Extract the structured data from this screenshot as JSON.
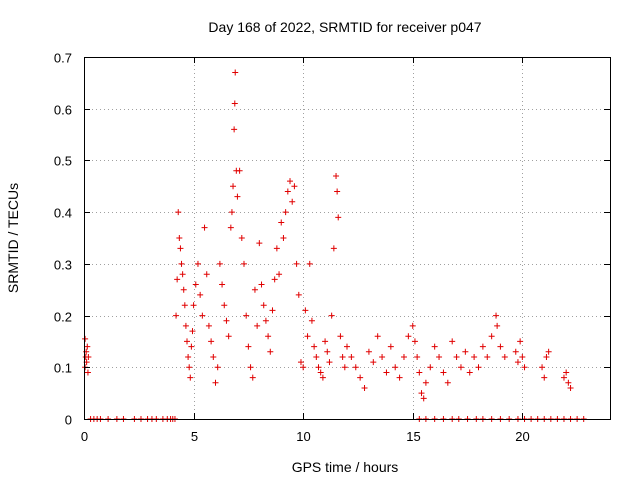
{
  "chart_data": {
    "type": "scatter",
    "title": "Day 168 of 2022, SRMTID for receiver p047",
    "xlabel": "GPS time / hours",
    "ylabel": "SRMTID / TECUs",
    "xlim": [
      0,
      24
    ],
    "ylim": [
      0,
      0.7
    ],
    "x_ticks": [
      0,
      5,
      10,
      15,
      20
    ],
    "y_ticks": [
      0,
      0.1,
      0.2,
      0.3,
      0.4,
      0.5,
      0.6,
      0.7
    ],
    "x_tick_labels": [
      "0",
      "5",
      "10",
      "15",
      "20"
    ],
    "y_tick_labels": [
      "0",
      "0.1",
      "0.2",
      "0.3",
      "0.4",
      "0.5",
      "0.6",
      "0.7"
    ],
    "grid": true,
    "marker": "plus",
    "marker_color": "#e00000",
    "series": [
      {
        "name": "SRMTID",
        "points": [
          [
            0.05,
            0.1
          ],
          [
            0.08,
            0.12
          ],
          [
            0.1,
            0.13
          ],
          [
            0.12,
            0.11
          ],
          [
            0.15,
            0.14
          ],
          [
            0.18,
            0.09
          ],
          [
            0.2,
            0.12
          ],
          [
            0.05,
            0.155
          ],
          [
            4.2,
            0.2
          ],
          [
            4.25,
            0.27
          ],
          [
            4.3,
            0.4
          ],
          [
            4.35,
            0.35
          ],
          [
            4.4,
            0.33
          ],
          [
            4.45,
            0.3
          ],
          [
            4.5,
            0.28
          ],
          [
            4.55,
            0.25
          ],
          [
            4.6,
            0.22
          ],
          [
            4.65,
            0.18
          ],
          [
            4.7,
            0.15
          ],
          [
            4.75,
            0.12
          ],
          [
            4.8,
            0.1
          ],
          [
            4.85,
            0.08
          ],
          [
            4.9,
            0.14
          ],
          [
            4.95,
            0.17
          ],
          [
            5.0,
            0.22
          ],
          [
            5.1,
            0.26
          ],
          [
            5.2,
            0.3
          ],
          [
            5.3,
            0.24
          ],
          [
            5.4,
            0.2
          ],
          [
            5.5,
            0.37
          ],
          [
            5.6,
            0.28
          ],
          [
            5.7,
            0.18
          ],
          [
            5.8,
            0.15
          ],
          [
            5.9,
            0.12
          ],
          [
            6.0,
            0.07
          ],
          [
            6.1,
            0.1
          ],
          [
            6.2,
            0.3
          ],
          [
            6.3,
            0.26
          ],
          [
            6.4,
            0.22
          ],
          [
            6.5,
            0.19
          ],
          [
            6.6,
            0.16
          ],
          [
            6.7,
            0.37
          ],
          [
            6.75,
            0.4
          ],
          [
            6.8,
            0.45
          ],
          [
            6.85,
            0.56
          ],
          [
            6.88,
            0.61
          ],
          [
            6.9,
            0.67
          ],
          [
            6.95,
            0.48
          ],
          [
            7.0,
            0.43
          ],
          [
            7.1,
            0.48
          ],
          [
            7.2,
            0.35
          ],
          [
            7.3,
            0.3
          ],
          [
            7.4,
            0.2
          ],
          [
            7.5,
            0.14
          ],
          [
            7.6,
            0.1
          ],
          [
            7.7,
            0.08
          ],
          [
            7.8,
            0.25
          ],
          [
            7.9,
            0.18
          ],
          [
            8.0,
            0.34
          ],
          [
            8.1,
            0.26
          ],
          [
            8.2,
            0.22
          ],
          [
            8.3,
            0.19
          ],
          [
            8.4,
            0.16
          ],
          [
            8.5,
            0.13
          ],
          [
            8.6,
            0.21
          ],
          [
            8.7,
            0.27
          ],
          [
            8.8,
            0.33
          ],
          [
            8.9,
            0.28
          ],
          [
            9.0,
            0.38
          ],
          [
            9.1,
            0.35
          ],
          [
            9.2,
            0.4
          ],
          [
            9.3,
            0.44
          ],
          [
            9.4,
            0.46
          ],
          [
            9.5,
            0.42
          ],
          [
            9.6,
            0.45
          ],
          [
            9.7,
            0.3
          ],
          [
            9.8,
            0.24
          ],
          [
            9.9,
            0.11
          ],
          [
            10.0,
            0.1
          ],
          [
            10.1,
            0.21
          ],
          [
            10.2,
            0.16
          ],
          [
            10.3,
            0.3
          ],
          [
            10.4,
            0.19
          ],
          [
            10.5,
            0.14
          ],
          [
            10.6,
            0.12
          ],
          [
            10.7,
            0.1
          ],
          [
            10.8,
            0.09
          ],
          [
            10.9,
            0.08
          ],
          [
            11.0,
            0.15
          ],
          [
            11.1,
            0.13
          ],
          [
            11.2,
            0.11
          ],
          [
            11.3,
            0.2
          ],
          [
            11.4,
            0.33
          ],
          [
            11.5,
            0.47
          ],
          [
            11.55,
            0.44
          ],
          [
            11.6,
            0.39
          ],
          [
            11.7,
            0.16
          ],
          [
            11.8,
            0.12
          ],
          [
            11.9,
            0.1
          ],
          [
            12.0,
            0.14
          ],
          [
            12.2,
            0.12
          ],
          [
            12.4,
            0.1
          ],
          [
            12.6,
            0.08
          ],
          [
            12.8,
            0.06
          ],
          [
            13.0,
            0.13
          ],
          [
            13.2,
            0.11
          ],
          [
            13.4,
            0.16
          ],
          [
            13.6,
            0.12
          ],
          [
            13.8,
            0.09
          ],
          [
            14.0,
            0.14
          ],
          [
            14.2,
            0.1
          ],
          [
            14.4,
            0.08
          ],
          [
            14.6,
            0.12
          ],
          [
            14.8,
            0.16
          ],
          [
            15.0,
            0.18
          ],
          [
            15.1,
            0.15
          ],
          [
            15.2,
            0.12
          ],
          [
            15.3,
            0.09
          ],
          [
            15.4,
            0.05
          ],
          [
            15.5,
            0.04
          ],
          [
            15.6,
            0.07
          ],
          [
            15.8,
            0.1
          ],
          [
            16.0,
            0.14
          ],
          [
            16.2,
            0.12
          ],
          [
            16.4,
            0.09
          ],
          [
            16.6,
            0.07
          ],
          [
            16.8,
            0.15
          ],
          [
            17.0,
            0.12
          ],
          [
            17.2,
            0.1
          ],
          [
            17.4,
            0.13
          ],
          [
            17.6,
            0.09
          ],
          [
            17.8,
            0.12
          ],
          [
            18.0,
            0.1
          ],
          [
            18.2,
            0.14
          ],
          [
            18.4,
            0.12
          ],
          [
            18.6,
            0.16
          ],
          [
            18.8,
            0.2
          ],
          [
            18.85,
            0.18
          ],
          [
            19.0,
            0.14
          ],
          [
            19.2,
            0.12
          ],
          [
            19.7,
            0.13
          ],
          [
            19.8,
            0.11
          ],
          [
            19.9,
            0.15
          ],
          [
            20.0,
            0.12
          ],
          [
            20.1,
            0.1
          ],
          [
            20.9,
            0.1
          ],
          [
            21.0,
            0.08
          ],
          [
            21.1,
            0.12
          ],
          [
            21.2,
            0.13
          ],
          [
            21.9,
            0.08
          ],
          [
            22.0,
            0.09
          ],
          [
            22.1,
            0.07
          ],
          [
            22.2,
            0.06
          ]
        ]
      }
    ],
    "zero_points_x": [
      0.3,
      0.45,
      0.6,
      0.75,
      1.1,
      1.5,
      1.8,
      2.3,
      2.6,
      2.9,
      3.1,
      3.3,
      3.6,
      3.8,
      3.95,
      4.05,
      4.15,
      15.3,
      15.6,
      16.0,
      16.4,
      16.8,
      17.1,
      17.5,
      17.9,
      18.2,
      18.6,
      19.0,
      19.4,
      19.8,
      20.1,
      20.4,
      20.7,
      21.0,
      21.3,
      21.6,
      21.9,
      22.2,
      22.5,
      22.8
    ]
  }
}
